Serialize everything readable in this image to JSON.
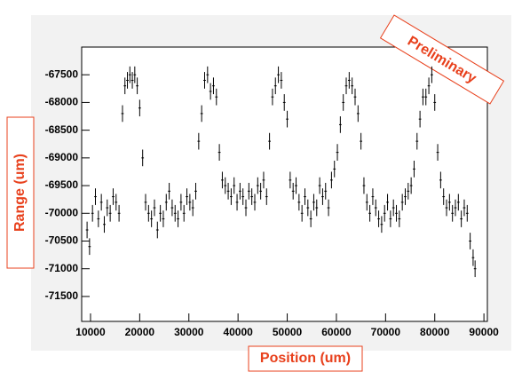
{
  "chart_data": {
    "type": "scatter",
    "x_label": "Position (um)",
    "y_label": "Range (um)",
    "annotation": "Preliminary",
    "xlim": [
      8200,
      90700
    ],
    "ylim": [
      -71950,
      -67000
    ],
    "xticks": [
      10000,
      20000,
      30000,
      40000,
      50000,
      60000,
      70000,
      80000,
      90000
    ],
    "yticks": [
      -67500,
      -68000,
      -68500,
      -69000,
      -69500,
      -70000,
      -70500,
      -71000,
      -71500
    ],
    "color": "#000000",
    "xerr": 250,
    "yerr": 150,
    "x": [
      9300,
      9800,
      10400,
      11000,
      11600,
      12200,
      12800,
      13400,
      14000,
      14600,
      15200,
      15800,
      16500,
      17000,
      17500,
      18000,
      18500,
      19000,
      19500,
      20000,
      20600,
      21200,
      21800,
      22400,
      23000,
      23600,
      24200,
      24800,
      25400,
      26000,
      26600,
      27200,
      27800,
      28400,
      29000,
      29600,
      30200,
      30800,
      31400,
      32000,
      32600,
      33200,
      33800,
      34400,
      35000,
      35600,
      36200,
      36800,
      37400,
      38000,
      38600,
      39200,
      39800,
      40400,
      41000,
      41600,
      42200,
      42800,
      43400,
      44000,
      44600,
      45200,
      45800,
      46400,
      47000,
      47600,
      48200,
      48800,
      49400,
      50000,
      50600,
      51200,
      51800,
      52400,
      53000,
      53600,
      54200,
      54800,
      55400,
      56000,
      56600,
      57200,
      57800,
      58400,
      59000,
      59600,
      60200,
      60800,
      61400,
      62000,
      62600,
      63200,
      63800,
      64400,
      65000,
      65600,
      66200,
      66800,
      67400,
      68000,
      68600,
      69200,
      69800,
      70400,
      71000,
      71600,
      72200,
      72800,
      73400,
      74000,
      74600,
      75200,
      75800,
      76400,
      77000,
      77600,
      78200,
      78800,
      79400,
      80000,
      80600,
      81200,
      81800,
      82400,
      83000,
      83600,
      84200,
      84800,
      85400,
      86000,
      86600,
      87200,
      87800,
      88200
    ],
    "values": [
      -70300,
      -70600,
      -70000,
      -69700,
      -70100,
      -69800,
      -70200,
      -69900,
      -70000,
      -69700,
      -69800,
      -70000,
      -68200,
      -67700,
      -67600,
      -67500,
      -67600,
      -67500,
      -67700,
      -68100,
      -69000,
      -69800,
      -70000,
      -70100,
      -69900,
      -70300,
      -70000,
      -70100,
      -69800,
      -69600,
      -69900,
      -70000,
      -70100,
      -69800,
      -70000,
      -69700,
      -69800,
      -69900,
      -69600,
      -68700,
      -68200,
      -67600,
      -67500,
      -67800,
      -67700,
      -67900,
      -68900,
      -69400,
      -69500,
      -69600,
      -69700,
      -69500,
      -69800,
      -69600,
      -69700,
      -69900,
      -69600,
      -69700,
      -69800,
      -69500,
      -69600,
      -69400,
      -69700,
      -68700,
      -67900,
      -67700,
      -67500,
      -67600,
      -68000,
      -68300,
      -69400,
      -69600,
      -69500,
      -69800,
      -70000,
      -69700,
      -69900,
      -70100,
      -69800,
      -69900,
      -69500,
      -69700,
      -69600,
      -69900,
      -69400,
      -69200,
      -68900,
      -68400,
      -68000,
      -67700,
      -67600,
      -67700,
      -67900,
      -68200,
      -68700,
      -69500,
      -69800,
      -70000,
      -69700,
      -69900,
      -70100,
      -70200,
      -70000,
      -69800,
      -70100,
      -69900,
      -70000,
      -70100,
      -69800,
      -69700,
      -69600,
      -69500,
      -69200,
      -68700,
      -68300,
      -67900,
      -67900,
      -67700,
      -67500,
      -68000,
      -68900,
      -69400,
      -69700,
      -69900,
      -69800,
      -70000,
      -69900,
      -69800,
      -70100,
      -69900,
      -70000,
      -70500,
      -70800,
      -71000
    ]
  }
}
